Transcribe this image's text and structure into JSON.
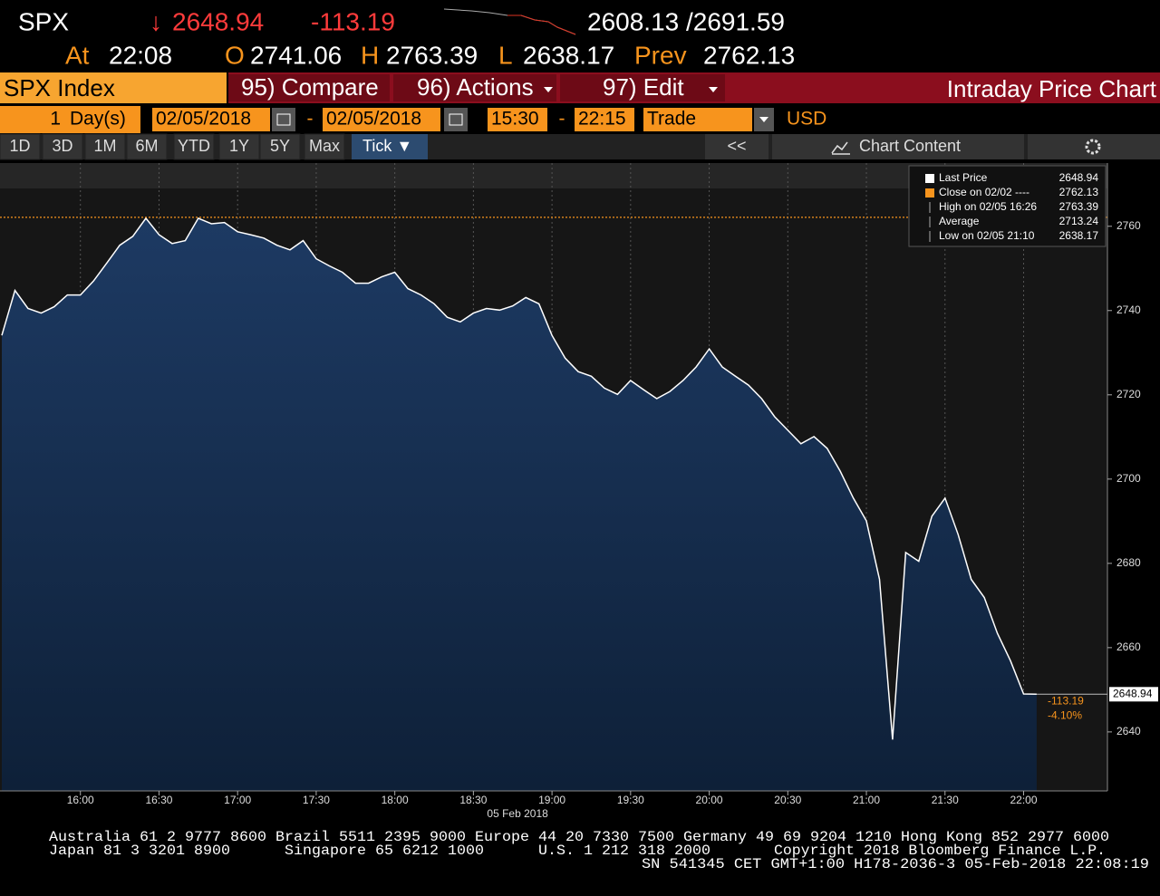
{
  "header": {
    "ticker": "SPX",
    "arrow": "↓",
    "last": "2648.94",
    "change": "-113.19",
    "range": "2608.13 /2691.59",
    "at_label": "At",
    "time": "22:08",
    "open_label": "O",
    "open": "2741.06",
    "high_label": "H",
    "high": "2763.39",
    "low_label": "L",
    "low": "2638.17",
    "prev_label": "Prev",
    "prev": "2762.13"
  },
  "toolbar": {
    "security": "SPX Index",
    "compare": "95) Compare",
    "actions": "96) Actions",
    "edit": "97) Edit",
    "title": "Intraday Price Chart"
  },
  "range_bar": {
    "count": "1",
    "unit": "Day(s)",
    "start_date": "02/05/2018",
    "dash1": "-",
    "end_date": "02/05/2018",
    "start_time": "15:30",
    "dash2": "-",
    "end_time": "22:15",
    "event": "Trade",
    "currency": "USD"
  },
  "buttons": {
    "periods": [
      "1D",
      "3D",
      "1M",
      "6M",
      "YTD",
      "1Y",
      "5Y",
      "Max"
    ],
    "tick": "Tick ▼",
    "back": "<<",
    "chart_content": "Chart Content"
  },
  "legend": [
    {
      "label": "Last Price",
      "value": "2648.94"
    },
    {
      "label": "Close on 02/02 ----",
      "value": "2762.13"
    },
    {
      "label": "High on 02/05 16:26",
      "value": "2763.39"
    },
    {
      "label": "Average",
      "value": "2713.24"
    },
    {
      "label": "Low on 02/05 21:10",
      "value": "2638.17"
    }
  ],
  "chart_data": {
    "type": "area",
    "color": "#ffffff",
    "fill_top": "#1d3a63",
    "fill_bottom": "#0e2038",
    "x": [
      "15:30",
      "15:35",
      "15:40",
      "15:45",
      "15:50",
      "15:55",
      "16:00",
      "16:05",
      "16:10",
      "16:15",
      "16:20",
      "16:25",
      "16:30",
      "16:35",
      "16:40",
      "16:45",
      "16:50",
      "16:55",
      "17:00",
      "17:05",
      "17:10",
      "17:15",
      "17:20",
      "17:25",
      "17:30",
      "17:35",
      "17:40",
      "17:45",
      "17:50",
      "17:55",
      "18:00",
      "18:05",
      "18:10",
      "18:15",
      "18:20",
      "18:25",
      "18:30",
      "18:35",
      "18:40",
      "18:45",
      "18:50",
      "18:55",
      "19:00",
      "19:05",
      "19:10",
      "19:15",
      "19:20",
      "19:25",
      "19:30",
      "19:35",
      "19:40",
      "19:45",
      "19:50",
      "19:55",
      "20:00",
      "20:05",
      "20:10",
      "20:15",
      "20:20",
      "20:25",
      "20:30",
      "20:35",
      "20:40",
      "20:45",
      "20:50",
      "20:55",
      "21:00",
      "21:05",
      "21:10",
      "21:15",
      "21:20",
      "21:25",
      "21:30",
      "21:35",
      "21:40",
      "21:45",
      "21:50",
      "21:55",
      "22:00",
      "22:05"
    ],
    "values": [
      2734.1,
      2744.8,
      2740.5,
      2739.4,
      2740.9,
      2743.7,
      2743.7,
      2747,
      2751.2,
      2755.5,
      2757.6,
      2761.9,
      2758,
      2755.9,
      2756.6,
      2761.9,
      2760.6,
      2760.9,
      2758.7,
      2758,
      2757.2,
      2755.5,
      2754.4,
      2756.6,
      2752.3,
      2750.6,
      2749.1,
      2746.5,
      2746.5,
      2748,
      2749.1,
      2745.2,
      2743.7,
      2741.6,
      2738.4,
      2737.3,
      2739.4,
      2740.5,
      2740.1,
      2741.1,
      2743.1,
      2741.6,
      2734.1,
      2728.7,
      2725.5,
      2724.4,
      2721.6,
      2720.1,
      2723.4,
      2721.2,
      2719.1,
      2720.8,
      2723.4,
      2726.6,
      2730.9,
      2726.6,
      2724.4,
      2722.3,
      2719.1,
      2714.8,
      2711.6,
      2708.4,
      2710.1,
      2707.3,
      2701.9,
      2695.5,
      2690.1,
      2676.2,
      2638.2,
      2682.6,
      2680.5,
      2691.2,
      2695.5,
      2686.9,
      2676.2,
      2671.9,
      2663.4,
      2656.9,
      2649,
      2648.94
    ],
    "xlim": [
      "15:30",
      "22:32"
    ],
    "xticks": [
      "16:00",
      "16:30",
      "17:00",
      "17:30",
      "18:00",
      "18:30",
      "19:00",
      "19:30",
      "20:00",
      "20:30",
      "21:00",
      "21:30",
      "22:00"
    ],
    "x_sublabel": "05 Feb 2018",
    "ylim": [
      2626,
      2775
    ],
    "yticks": [
      2640,
      2660,
      2680,
      2700,
      2720,
      2740,
      2760
    ],
    "grid": "x",
    "reference_line": {
      "value": 2762.13,
      "color": "#f7941d"
    },
    "last_label": "2648.94",
    "change_label": "-113.19",
    "change_pct_label": "-4.10%"
  },
  "footer": {
    "line1": "Australia 61 2 9777 8600 Brazil 5511 2395 9000 Europe 44 20 7330 7500 Germany 49 69 9204 1210 Hong Kong 852 2977 6000",
    "line2": [
      "Japan 81 3 3201 8900",
      "Singapore 65 6212 1000",
      "U.S. 1 212 318 2000",
      "Copyright 2018 Bloomberg Finance L.P."
    ],
    "line3": "SN 541345 CET  GMT+1:00 H178-2036-3 05-Feb-2018 22:08:19"
  }
}
